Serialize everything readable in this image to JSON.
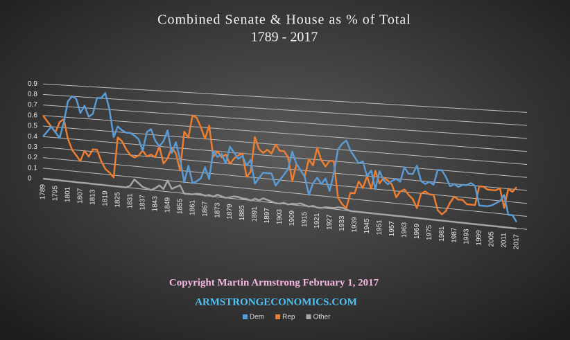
{
  "chart_data": {
    "type": "line",
    "title": "Combined Senate & House as % of Total",
    "subtitle": "1789 - 2017",
    "annotations": [
      "Copyright Martin Armstrong February 1, 2017",
      "ARMSTRONGECONOMICS.COM"
    ],
    "categories": [
      "1789",
      null,
      null,
      "1795",
      null,
      null,
      "1801",
      null,
      null,
      "1807",
      null,
      null,
      "1813",
      null,
      null,
      "1819",
      null,
      null,
      "1825",
      null,
      null,
      "1831",
      null,
      null,
      "1837",
      null,
      null,
      "1843",
      null,
      null,
      "1849",
      null,
      null,
      "1855",
      null,
      null,
      "1861",
      null,
      null,
      "1867",
      null,
      null,
      "1873",
      null,
      null,
      "1879",
      null,
      null,
      "1885",
      null,
      null,
      "1891",
      null,
      null,
      "1897",
      null,
      null,
      "1903",
      null,
      null,
      "1909",
      null,
      null,
      "1915",
      null,
      null,
      "1921",
      null,
      null,
      "1927",
      null,
      null,
      "1933",
      null,
      null,
      "1939",
      null,
      null,
      "1945",
      null,
      null,
      "1951",
      null,
      null,
      "1957",
      null,
      null,
      "1963",
      null,
      null,
      "1969",
      null,
      null,
      "1975",
      null,
      null,
      "1981",
      null,
      null,
      "1987",
      null,
      null,
      "1993",
      null,
      null,
      "1999",
      null,
      null,
      "2005",
      null,
      null,
      "2011",
      null,
      null,
      "2017"
    ],
    "series": [
      {
        "name": "Dem",
        "color": "#5b9bd5",
        "values": [
          0.4,
          0.45,
          0.5,
          0.45,
          0.4,
          0.55,
          0.75,
          0.8,
          0.78,
          0.65,
          0.72,
          0.62,
          0.65,
          0.8,
          0.8,
          0.85,
          0.7,
          0.45,
          0.55,
          0.52,
          0.5,
          0.5,
          0.48,
          0.45,
          0.35,
          0.52,
          0.55,
          0.45,
          0.4,
          0.45,
          0.55,
          0.35,
          0.45,
          0.3,
          0.1,
          0.25,
          0.1,
          0.12,
          0.15,
          0.25,
          0.15,
          0.4,
          0.35,
          0.38,
          0.3,
          0.45,
          0.4,
          0.35,
          0.38,
          0.3,
          0.35,
          0.15,
          0.2,
          0.25,
          0.25,
          0.25,
          0.15,
          0.2,
          0.25,
          0.3,
          0.45,
          0.35,
          0.3,
          0.25,
          0.1,
          0.2,
          0.25,
          0.2,
          0.25,
          0.15,
          0.3,
          0.5,
          0.55,
          0.58,
          0.5,
          0.45,
          0.4,
          0.42,
          0.3,
          0.35,
          0.2,
          0.35,
          0.28,
          0.25,
          0.28,
          0.3,
          0.28,
          0.4,
          0.35,
          0.35,
          0.42,
          0.3,
          0.28,
          0.3,
          0.28,
          0.4,
          0.4,
          0.35,
          0.28,
          0.3,
          0.28,
          0.3,
          0.3,
          0.32,
          0.3,
          0.15,
          0.15,
          0.15,
          0.16,
          0.18,
          0.2,
          0.25,
          0.1,
          0.1,
          0.05
        ]
      },
      {
        "name": "Rep",
        "color": "#ed7d31",
        "values": [
          0.6,
          0.55,
          0.5,
          0.45,
          0.55,
          0.58,
          0.4,
          0.3,
          0.25,
          0.2,
          0.3,
          0.25,
          0.32,
          0.32,
          0.22,
          0.15,
          0.12,
          0.08,
          0.45,
          0.42,
          0.35,
          0.3,
          0.28,
          0.3,
          0.35,
          0.3,
          0.32,
          0.3,
          0.4,
          0.25,
          0.3,
          0.4,
          0.35,
          0.2,
          0.55,
          0.5,
          0.7,
          0.68,
          0.6,
          0.5,
          0.62,
          0.35,
          0.4,
          0.35,
          0.38,
          0.3,
          0.35,
          0.38,
          0.4,
          0.2,
          0.25,
          0.55,
          0.45,
          0.42,
          0.45,
          0.42,
          0.5,
          0.45,
          0.45,
          0.4,
          0.2,
          0.35,
          0.3,
          0.25,
          0.4,
          0.35,
          0.5,
          0.4,
          0.35,
          0.4,
          0.4,
          0.1,
          0.05,
          0.02,
          0.15,
          0.15,
          0.25,
          0.2,
          0.3,
          0.2,
          0.35,
          0.25,
          0.3,
          0.28,
          0.25,
          0.15,
          0.2,
          0.22,
          0.18,
          0.15,
          0.08,
          0.2,
          0.22,
          0.2,
          0.2,
          0.08,
          0.05,
          0.08,
          0.15,
          0.2,
          0.18,
          0.18,
          0.15,
          0.15,
          0.15,
          0.3,
          0.3,
          0.28,
          0.28,
          0.28,
          0.3,
          0.15,
          0.3,
          0.28,
          0.32
        ]
      },
      {
        "name": "Other",
        "color": "#a5a5a5",
        "values": [
          0,
          0,
          0,
          0,
          0,
          0,
          0,
          0,
          0,
          0,
          0,
          0,
          0,
          0,
          0,
          0,
          0,
          0,
          0,
          0,
          0,
          0.02,
          0.08,
          0.05,
          0.02,
          0.01,
          0,
          0.02,
          0.05,
          0.02,
          0.1,
          0.03,
          0.05,
          0.07,
          0,
          0,
          0,
          0.01,
          0.01,
          0,
          0.01,
          0,
          0.02,
          0.01,
          0,
          0.01,
          0.02,
          0.02,
          0.01,
          0.01,
          0,
          0.02,
          0.01,
          0.03,
          0.02,
          0.01,
          0,
          0,
          0.01,
          0,
          0.01,
          0.01,
          0.02,
          0.01,
          0,
          0.01,
          0,
          0,
          0.01,
          0.01,
          0.01,
          0.02,
          0.02,
          0.01,
          0,
          0,
          0,
          0,
          0,
          0,
          0,
          0,
          0,
          0,
          0,
          0,
          0,
          0,
          0,
          0,
          0,
          0,
          0,
          0,
          0,
          0,
          0,
          0,
          0,
          0,
          0,
          0,
          0,
          0,
          0,
          0,
          0,
          0,
          0,
          0,
          0,
          0,
          0,
          0,
          0
        ]
      }
    ],
    "ylim": [
      0,
      0.9
    ],
    "yticks": [
      0,
      0.1,
      0.2,
      0.3,
      0.4,
      0.5,
      0.6,
      0.7,
      0.8,
      0.9
    ],
    "grid": true,
    "legend": "bottom"
  }
}
